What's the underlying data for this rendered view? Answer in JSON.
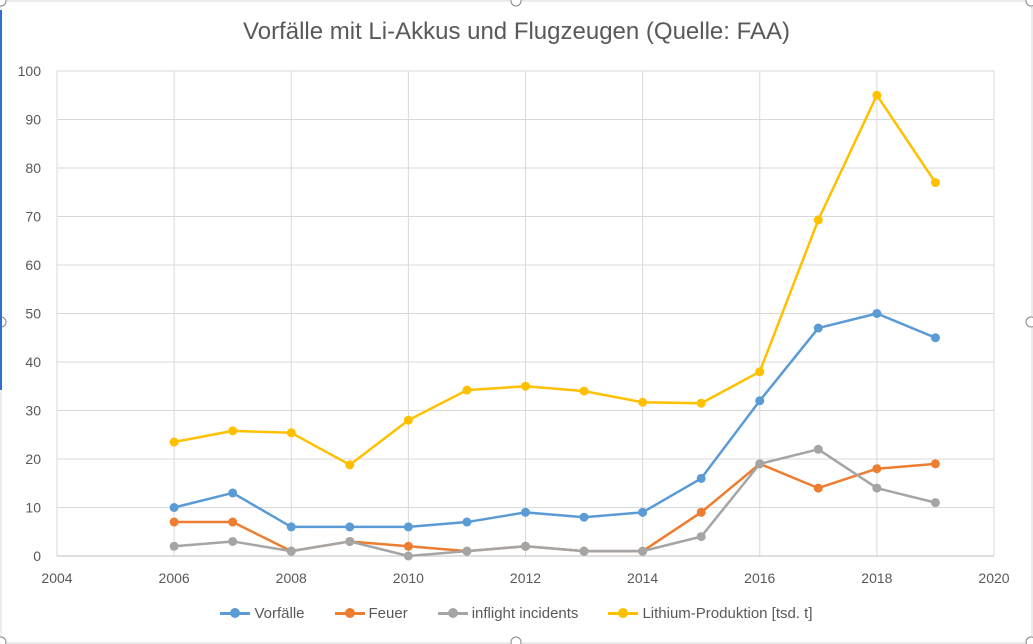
{
  "chart_data": {
    "type": "line",
    "title": "Vorfälle mit Li-Akkus und Flugzeugen (Quelle: FAA)",
    "x": [
      2006,
      2007,
      2008,
      2009,
      2010,
      2011,
      2012,
      2013,
      2014,
      2015,
      2016,
      2017,
      2018,
      2019
    ],
    "xlim": [
      2004,
      2020
    ],
    "ylim": [
      0,
      100
    ],
    "xticks": [
      "2004",
      "2006",
      "2008",
      "2010",
      "2012",
      "2014",
      "2016",
      "2018",
      "2020"
    ],
    "yticks": [
      "0",
      "10",
      "20",
      "30",
      "40",
      "50",
      "60",
      "70",
      "80",
      "90",
      "100"
    ],
    "grid": true,
    "legend": "bottom",
    "series": [
      {
        "name": "Vorfälle",
        "color": "#5B9BD5",
        "values": [
          10,
          13,
          6,
          6,
          6,
          7,
          9,
          8,
          9,
          16,
          32,
          47,
          50,
          45
        ]
      },
      {
        "name": "Feuer",
        "color": "#ED7D31",
        "values": [
          7,
          7,
          1,
          3,
          2,
          1,
          2,
          1,
          1,
          9,
          19,
          14,
          18,
          19
        ]
      },
      {
        "name": "inflight incidents",
        "color": "#A5A5A5",
        "values": [
          2,
          3,
          1,
          3,
          0,
          1,
          2,
          1,
          1,
          4,
          19,
          22,
          14,
          11
        ]
      },
      {
        "name": "Lithium-Produktion [tsd. t]",
        "color": "#FFC000",
        "values": [
          23.5,
          25.8,
          25.4,
          18.8,
          28,
          34.2,
          35,
          34,
          31.7,
          31.5,
          38,
          69.3,
          95,
          77
        ]
      }
    ]
  }
}
